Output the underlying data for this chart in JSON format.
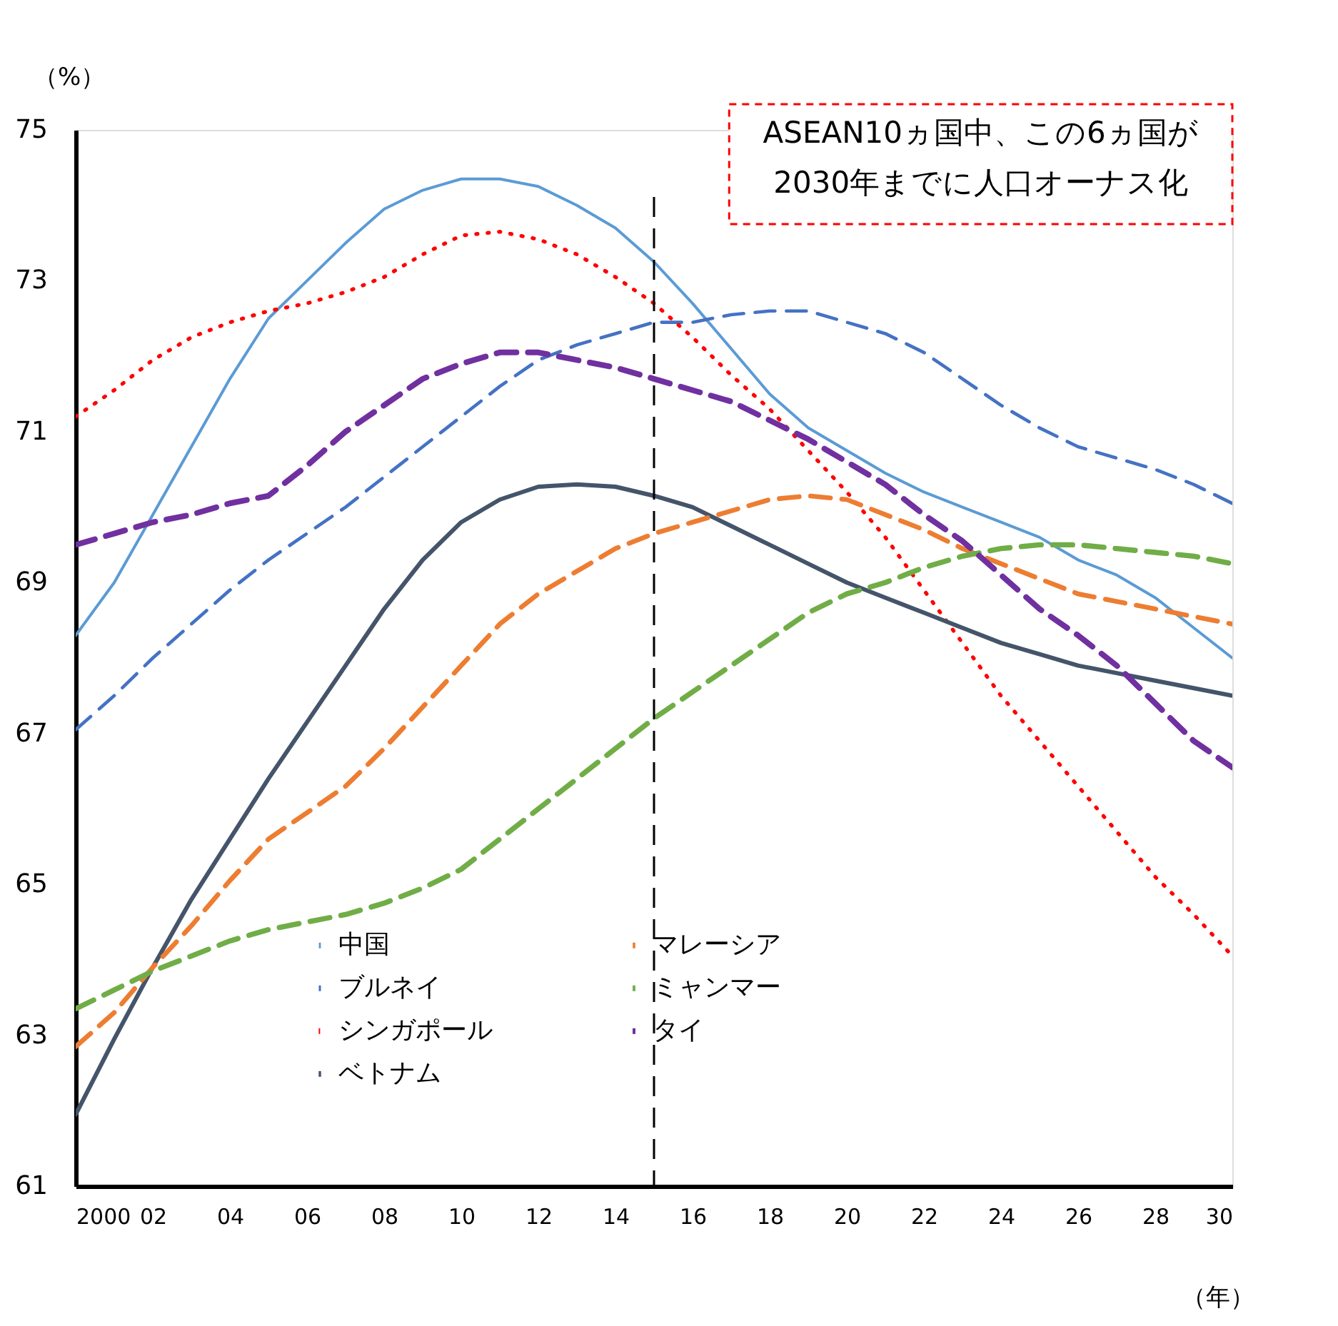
{
  "chart_data": {
    "type": "line",
    "x": [
      2000,
      2001,
      2002,
      2003,
      2004,
      2005,
      2006,
      2007,
      2008,
      2009,
      2010,
      2011,
      2012,
      2013,
      2014,
      2015,
      2016,
      2017,
      2018,
      2019,
      2020,
      2021,
      2022,
      2023,
      2024,
      2025,
      2026,
      2027,
      2028,
      2029,
      2030
    ],
    "series": [
      {
        "name": "中国",
        "color": "#5b9bd5",
        "line_style": "solid",
        "values": [
          68.3,
          69.0,
          69.9,
          70.8,
          71.7,
          72.5,
          73.0,
          73.5,
          73.95,
          74.2,
          74.35,
          74.35,
          74.25,
          74.0,
          73.7,
          73.25,
          72.7,
          72.1,
          71.5,
          71.05,
          70.75,
          70.45,
          70.2,
          70.0,
          69.8,
          69.6,
          69.3,
          69.1,
          68.8,
          68.4,
          68.0
        ]
      },
      {
        "name": "ブルネイ",
        "color": "#4472c4",
        "line_style": "dashed",
        "values": [
          67.05,
          67.5,
          68.0,
          68.45,
          68.9,
          69.3,
          69.65,
          70.0,
          70.4,
          70.8,
          71.2,
          71.6,
          71.95,
          72.15,
          72.3,
          72.45,
          72.45,
          72.55,
          72.6,
          72.6,
          72.45,
          72.3,
          72.05,
          71.7,
          71.35,
          71.05,
          70.8,
          70.65,
          70.5,
          70.3,
          70.05
        ]
      },
      {
        "name": "シンガポール",
        "color": "#ff0000",
        "line_style": "dotted",
        "values": [
          71.2,
          71.55,
          71.95,
          72.25,
          72.45,
          72.6,
          72.7,
          72.85,
          73.05,
          73.35,
          73.6,
          73.65,
          73.55,
          73.35,
          73.05,
          72.7,
          72.25,
          71.75,
          71.3,
          70.75,
          70.2,
          69.6,
          68.9,
          68.2,
          67.5,
          66.9,
          66.3,
          65.7,
          65.1,
          64.6,
          64.05
        ]
      },
      {
        "name": "ベトナム",
        "color": "#44546a",
        "line_style": "solid",
        "values": [
          61.95,
          62.95,
          63.9,
          64.8,
          65.6,
          66.4,
          67.15,
          67.9,
          68.65,
          69.3,
          69.8,
          70.1,
          70.27,
          70.3,
          70.27,
          70.15,
          70.0,
          69.75,
          69.5,
          69.25,
          69.0,
          68.8,
          68.6,
          68.4,
          68.2,
          68.05,
          67.9,
          67.8,
          67.7,
          67.6,
          67.5
        ]
      },
      {
        "name": "マレーシア",
        "color": "#ed7d31",
        "line_style": "dashed",
        "values": [
          62.85,
          63.3,
          63.9,
          64.45,
          65.05,
          65.6,
          65.95,
          66.3,
          66.8,
          67.35,
          67.9,
          68.45,
          68.85,
          69.15,
          69.45,
          69.65,
          69.8,
          69.95,
          70.1,
          70.15,
          70.1,
          69.9,
          69.7,
          69.45,
          69.25,
          69.05,
          68.85,
          68.75,
          68.65,
          68.55,
          68.45
        ]
      },
      {
        "name": "ミャンマー",
        "color": "#70ad47",
        "line_style": "dashed",
        "values": [
          63.35,
          63.6,
          63.85,
          64.05,
          64.25,
          64.4,
          64.5,
          64.6,
          64.75,
          64.95,
          65.2,
          65.6,
          66.0,
          66.4,
          66.8,
          67.2,
          67.55,
          67.9,
          68.25,
          68.6,
          68.85,
          69.0,
          69.2,
          69.35,
          69.45,
          69.5,
          69.5,
          69.45,
          69.4,
          69.35,
          69.25
        ]
      },
      {
        "name": "タイ",
        "color": "#7030a0",
        "line_style": "dashed",
        "values": [
          69.5,
          69.65,
          69.8,
          69.9,
          70.05,
          70.15,
          70.55,
          71.0,
          71.35,
          71.7,
          71.9,
          72.05,
          72.05,
          71.95,
          71.85,
          71.7,
          71.55,
          71.4,
          71.15,
          70.9,
          70.6,
          70.3,
          69.9,
          69.55,
          69.1,
          68.65,
          68.3,
          67.9,
          67.4,
          66.9,
          66.55
        ]
      }
    ],
    "xlim": [
      2000,
      2030
    ],
    "xticks": [
      {
        "value": 2000,
        "label": "2000"
      },
      {
        "value": 2002,
        "label": "02"
      },
      {
        "value": 2004,
        "label": "04"
      },
      {
        "value": 2006,
        "label": "06"
      },
      {
        "value": 2008,
        "label": "08"
      },
      {
        "value": 2010,
        "label": "10"
      },
      {
        "value": 2012,
        "label": "12"
      },
      {
        "value": 2014,
        "label": "14"
      },
      {
        "value": 2016,
        "label": "16"
      },
      {
        "value": 2018,
        "label": "18"
      },
      {
        "value": 2020,
        "label": "20"
      },
      {
        "value": 2022,
        "label": "22"
      },
      {
        "value": 2024,
        "label": "24"
      },
      {
        "value": 2026,
        "label": "26"
      },
      {
        "value": 2028,
        "label": "28"
      },
      {
        "value": 2030,
        "label": "30"
      }
    ],
    "ylim": [
      61,
      75
    ],
    "yticks": [
      61,
      63,
      65,
      67,
      69,
      71,
      73,
      75
    ],
    "xlabel": "（年）",
    "ylabel": "（%）",
    "ref_lines": [
      {
        "axis": "x",
        "value": 2015,
        "color": "#000000",
        "line_style": "dashed"
      }
    ],
    "annotations": [
      "ASEAN10ヵ国中、この6ヵ国が\n2030年までに人口オーナス化"
    ],
    "grid": false,
    "legend": "bottom"
  }
}
